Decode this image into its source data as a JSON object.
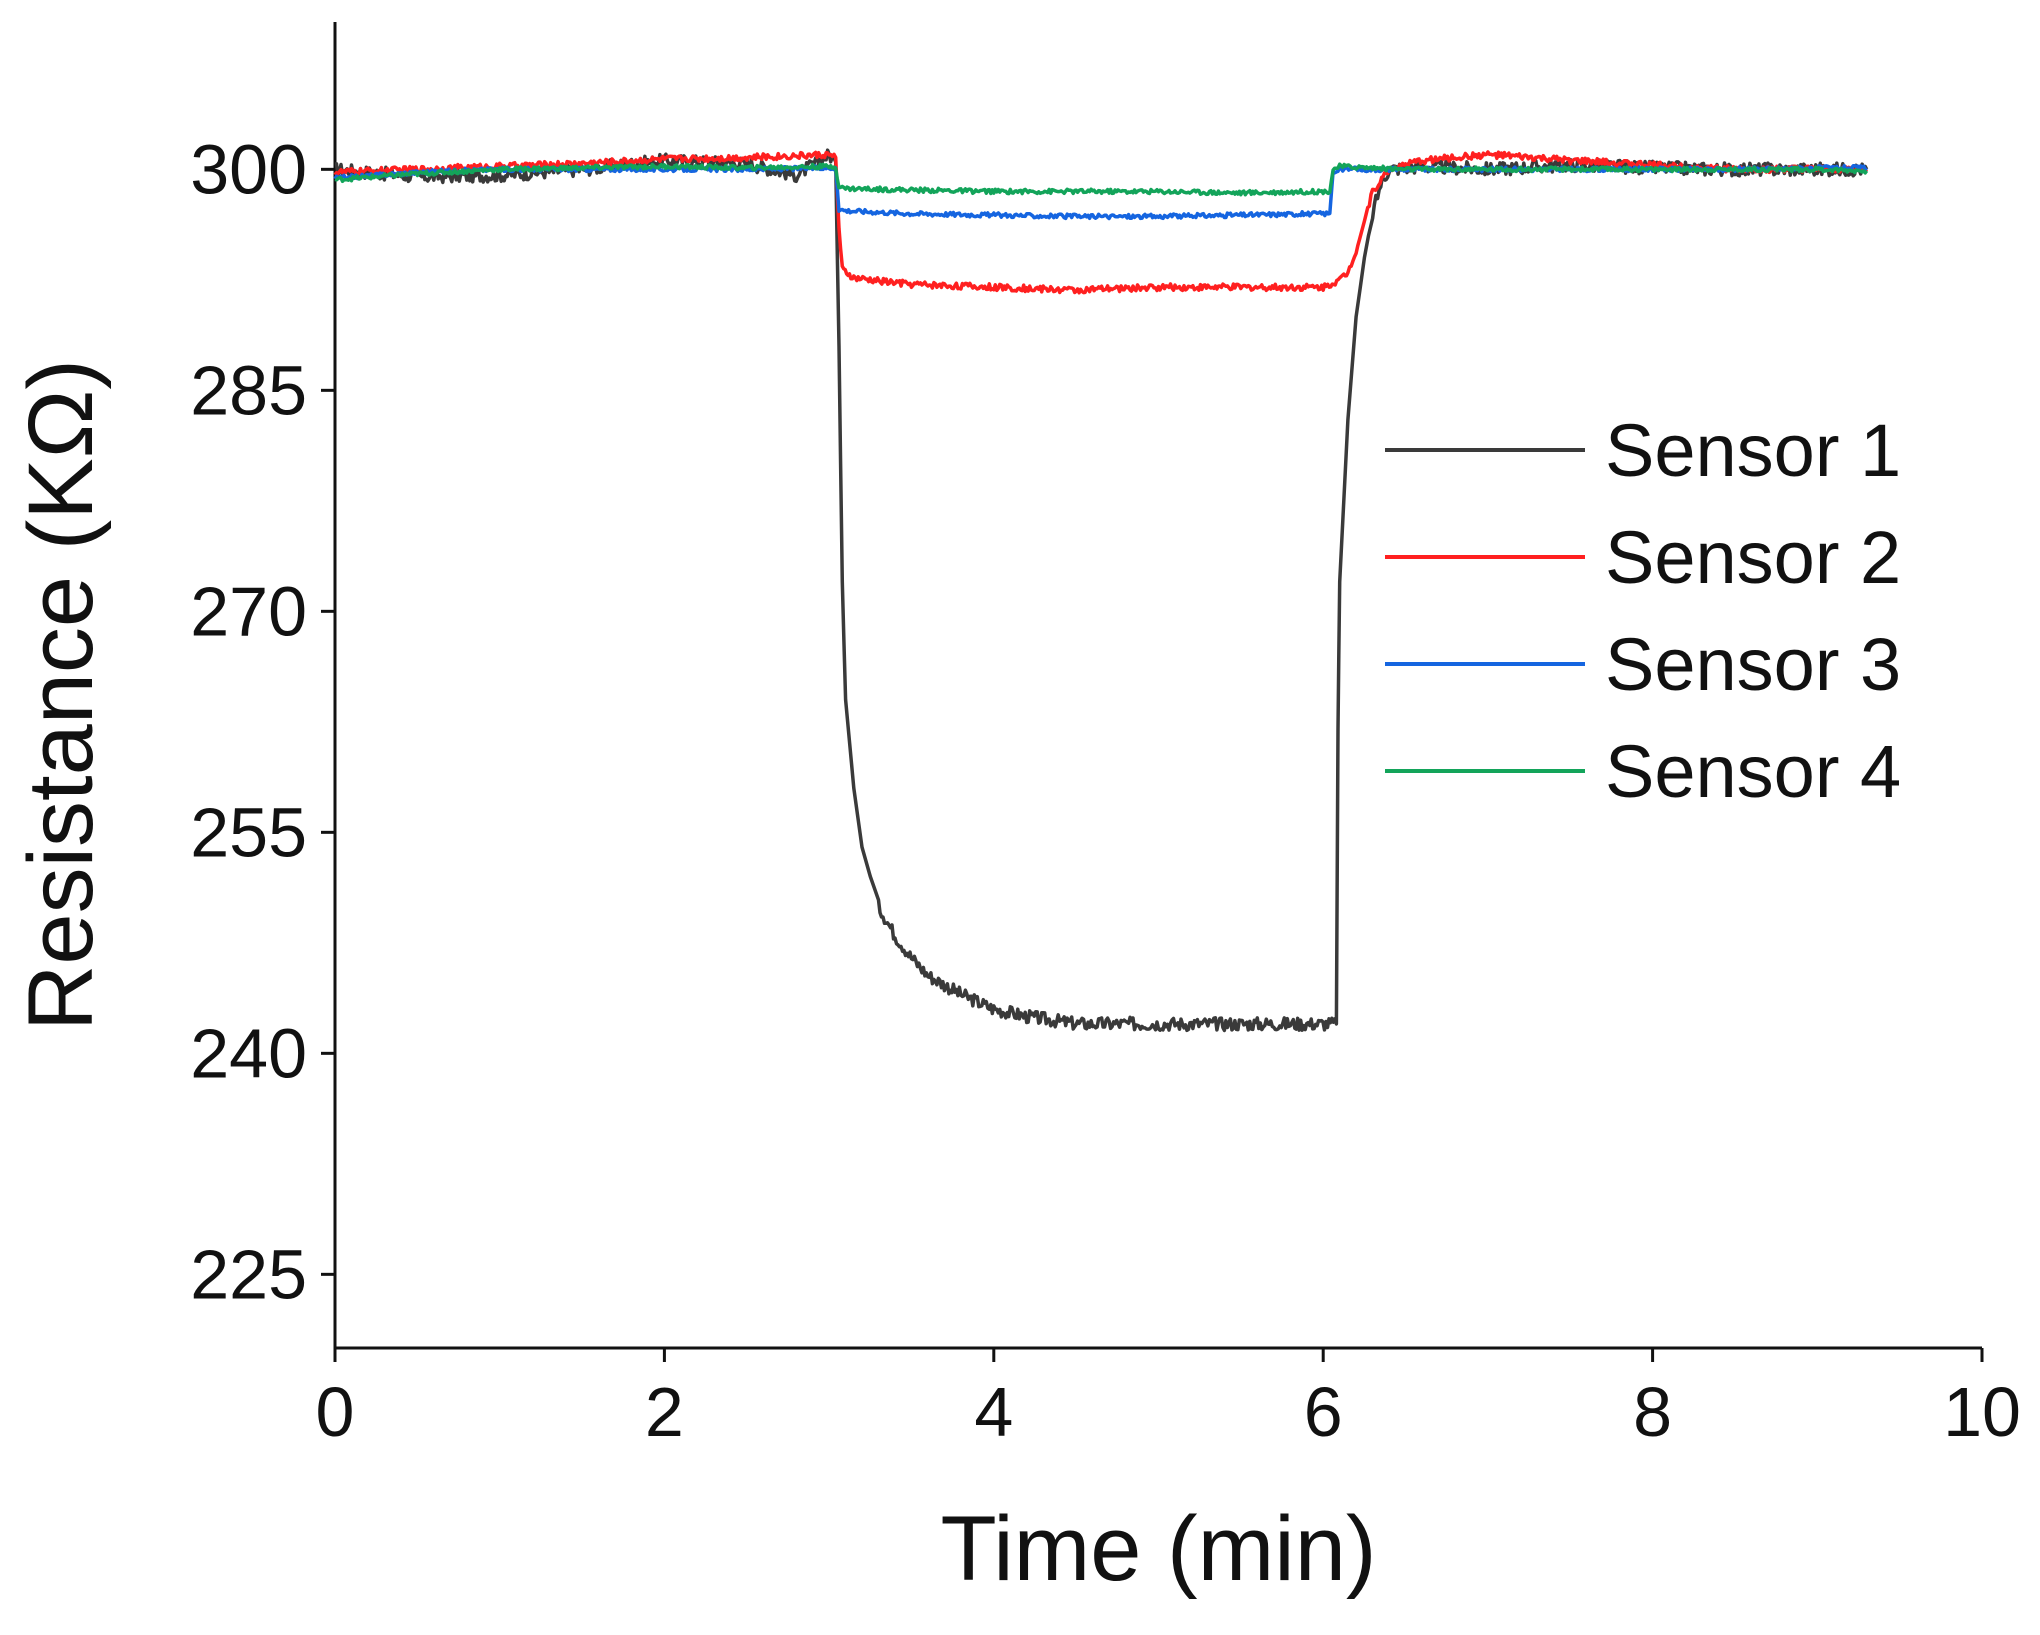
{
  "chart_data": {
    "type": "line",
    "title": "",
    "xlabel": "Time (min)",
    "ylabel": "Resistance (KΩ)",
    "xlim": [
      0,
      10
    ],
    "ylim": [
      220,
      310
    ],
    "xticks": [
      0,
      2,
      4,
      6,
      8,
      10
    ],
    "yticks": [
      225,
      240,
      255,
      270,
      285,
      300
    ],
    "grid": false,
    "legend_position": "right-middle",
    "series": [
      {
        "name": "Sensor 1",
        "color": "#3a3a3a",
        "x": [
          0,
          0.5,
          1.0,
          1.5,
          2.0,
          2.5,
          2.8,
          3.0,
          3.04,
          3.06,
          3.08,
          3.1,
          3.15,
          3.2,
          3.3,
          3.4,
          3.5,
          3.6,
          3.8,
          4.0,
          4.2,
          4.5,
          5.0,
          5.5,
          5.9,
          6.08,
          6.09,
          6.1,
          6.15,
          6.2,
          6.25,
          6.3,
          6.35,
          6.4,
          6.6,
          7.0,
          7.5,
          8.0,
          8.5,
          9.0,
          9.3
        ],
        "y": [
          300.0,
          299.5,
          299.6,
          300.0,
          300.6,
          300.4,
          299.6,
          301.0,
          300.5,
          288.0,
          272.0,
          264.0,
          258.0,
          254.0,
          250.0,
          248.0,
          246.5,
          245.3,
          244.0,
          243.0,
          242.5,
          242.0,
          242.0,
          242.0,
          242.0,
          242.0,
          262.0,
          272.0,
          283.0,
          290.0,
          294.0,
          297.0,
          299.0,
          300.0,
          300.2,
          300.0,
          300.3,
          300.1,
          300.0,
          300.0,
          300.0
        ]
      },
      {
        "name": "Sensor 2",
        "color": "#ff2020",
        "x": [
          0,
          0.5,
          1.0,
          1.5,
          2.0,
          2.5,
          3.0,
          3.04,
          3.06,
          3.08,
          3.15,
          3.5,
          4.0,
          4.5,
          5.0,
          5.5,
          6.0,
          6.1,
          6.15,
          6.2,
          6.25,
          6.3,
          6.4,
          6.6,
          7.0,
          7.5,
          8.0,
          8.5,
          9.0,
          9.3
        ],
        "y": [
          299.8,
          300.0,
          300.2,
          300.4,
          300.7,
          300.8,
          301.0,
          300.8,
          296.0,
          293.2,
          292.6,
          292.2,
          292.0,
          291.8,
          292.0,
          292.0,
          292.0,
          292.5,
          293.0,
          294.5,
          296.5,
          298.5,
          300.0,
          300.6,
          301.0,
          300.6,
          300.3,
          300.0,
          300.0,
          300.0
        ]
      },
      {
        "name": "Sensor 3",
        "color": "#1565e0",
        "x": [
          0,
          0.5,
          1.0,
          1.5,
          2.0,
          2.5,
          3.0,
          3.04,
          3.06,
          3.1,
          3.5,
          4.0,
          4.5,
          5.0,
          5.5,
          6.0,
          6.04,
          6.06,
          6.1,
          6.5,
          7.0,
          7.5,
          8.0,
          8.5,
          9.0,
          9.3
        ],
        "y": [
          299.4,
          299.8,
          300.0,
          300.0,
          300.0,
          300.0,
          300.1,
          300.1,
          297.3,
          297.2,
          297.0,
          296.9,
          296.8,
          296.8,
          296.9,
          297.0,
          297.0,
          299.8,
          300.0,
          300.0,
          300.0,
          300.0,
          300.0,
          300.0,
          300.1,
          300.1
        ]
      },
      {
        "name": "Sensor 4",
        "color": "#13a45a",
        "x": [
          0,
          0.5,
          1.0,
          1.5,
          2.0,
          2.5,
          3.0,
          3.04,
          3.06,
          3.1,
          3.5,
          4.0,
          4.5,
          5.0,
          5.5,
          6.0,
          6.04,
          6.06,
          6.1,
          6.5,
          7.0,
          7.5,
          8.0,
          8.5,
          9.0,
          9.3
        ],
        "y": [
          299.3,
          299.7,
          300.0,
          300.1,
          300.2,
          300.1,
          300.2,
          300.2,
          298.8,
          298.7,
          298.6,
          298.5,
          298.5,
          298.5,
          298.4,
          298.5,
          298.5,
          300.0,
          300.2,
          300.0,
          300.0,
          300.0,
          300.0,
          300.0,
          300.0,
          299.9
        ]
      }
    ]
  }
}
